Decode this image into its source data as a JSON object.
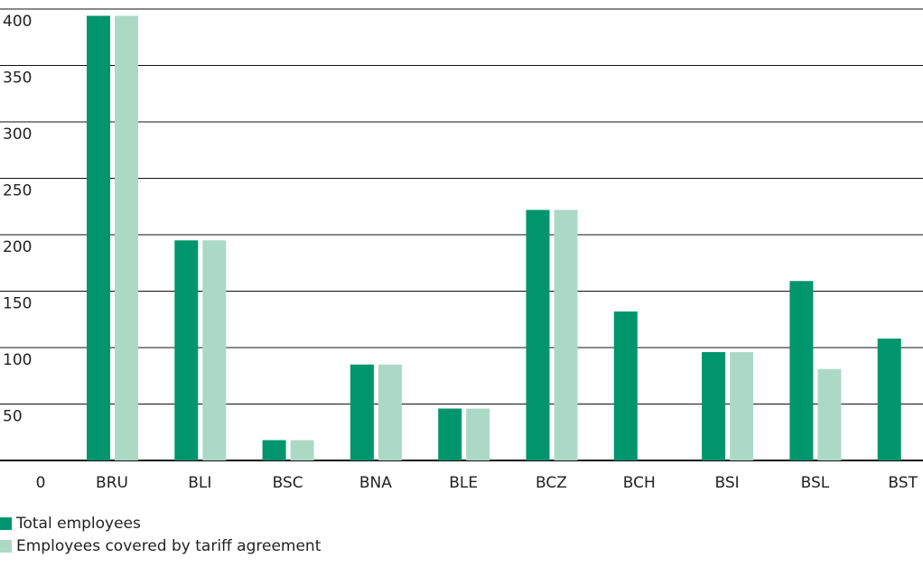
{
  "chart_data": {
    "type": "bar",
    "categories": [
      "BRU",
      "BLI",
      "BSC",
      "BNA",
      "BLE",
      "BCZ",
      "BCH",
      "BSI",
      "BSL",
      "BST"
    ],
    "series": [
      {
        "name": "Total employees",
        "color": "#00956c",
        "values": [
          394,
          195,
          18,
          85,
          46,
          222,
          132,
          96,
          159,
          108
        ]
      },
      {
        "name": "Employees covered by tariff agreement",
        "color": "#acd9c6",
        "values": [
          394,
          195,
          18,
          85,
          46,
          222,
          0,
          96,
          81,
          0
        ]
      }
    ],
    "ylim": [
      0,
      400
    ],
    "yticks": [
      0,
      50,
      100,
      150,
      200,
      250,
      300,
      350,
      400
    ],
    "grid": true
  }
}
